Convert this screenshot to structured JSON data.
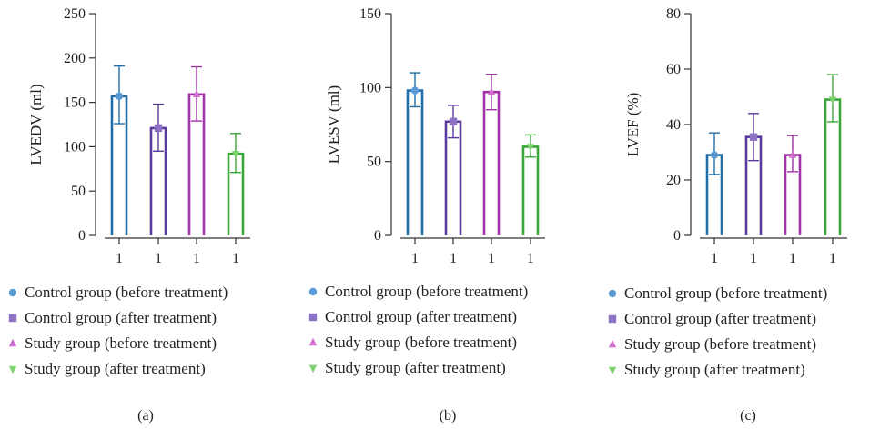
{
  "colors": {
    "series": [
      "#1f6ea8",
      "#5b3a9e",
      "#a033a6",
      "#3aa63a"
    ],
    "markers": [
      "#5b9bd5",
      "#8e73c4",
      "#d06fcf",
      "#7ed36f"
    ]
  },
  "chart_data": [
    {
      "type": "bar",
      "caption": "(a)",
      "ylabel": "LVEDV (ml)",
      "ylim": [
        0,
        250
      ],
      "yticks": [
        0,
        50,
        100,
        150,
        200,
        250
      ],
      "categories": [
        "1",
        "1",
        "1",
        "1"
      ],
      "series": [
        {
          "name": "Control group (before treatment)",
          "value": 157,
          "error_low": 126,
          "error_high": 191
        },
        {
          "name": "Control group (after treatment)",
          "value": 121,
          "error_low": 95,
          "error_high": 148
        },
        {
          "name": "Study group (before treatment)",
          "value": 159,
          "error_low": 129,
          "error_high": 190
        },
        {
          "name": "Study group (after treatment)",
          "value": 92,
          "error_low": 71,
          "error_high": 115
        }
      ]
    },
    {
      "type": "bar",
      "caption": "(b)",
      "ylabel": "LVESV (ml)",
      "ylim": [
        0,
        150
      ],
      "yticks": [
        0,
        50,
        100,
        150
      ],
      "categories": [
        "1",
        "1",
        "1",
        "1"
      ],
      "series": [
        {
          "name": "Control group (before treatment)",
          "value": 98,
          "error_low": 87,
          "error_high": 110
        },
        {
          "name": "Control group (after treatment)",
          "value": 77,
          "error_low": 66,
          "error_high": 88
        },
        {
          "name": "Study group (before treatment)",
          "value": 97,
          "error_low": 85,
          "error_high": 109
        },
        {
          "name": "Study group (after treatment)",
          "value": 60,
          "error_low": 53,
          "error_high": 68
        }
      ]
    },
    {
      "type": "bar",
      "caption": "(c)",
      "ylabel": "LVEF (%)",
      "ylim": [
        0,
        80
      ],
      "yticks": [
        0,
        20,
        40,
        60,
        80
      ],
      "categories": [
        "1",
        "1",
        "1",
        "1"
      ],
      "series": [
        {
          "name": "Control group (before treatment)",
          "value": 29,
          "error_low": 22,
          "error_high": 37
        },
        {
          "name": "Control group (after treatment)",
          "value": 35.5,
          "error_low": 27,
          "error_high": 44
        },
        {
          "name": "Study group (before treatment)",
          "value": 29,
          "error_low": 23,
          "error_high": 36
        },
        {
          "name": "Study group (after treatment)",
          "value": 49,
          "error_low": 41,
          "error_high": 58
        }
      ]
    }
  ]
}
